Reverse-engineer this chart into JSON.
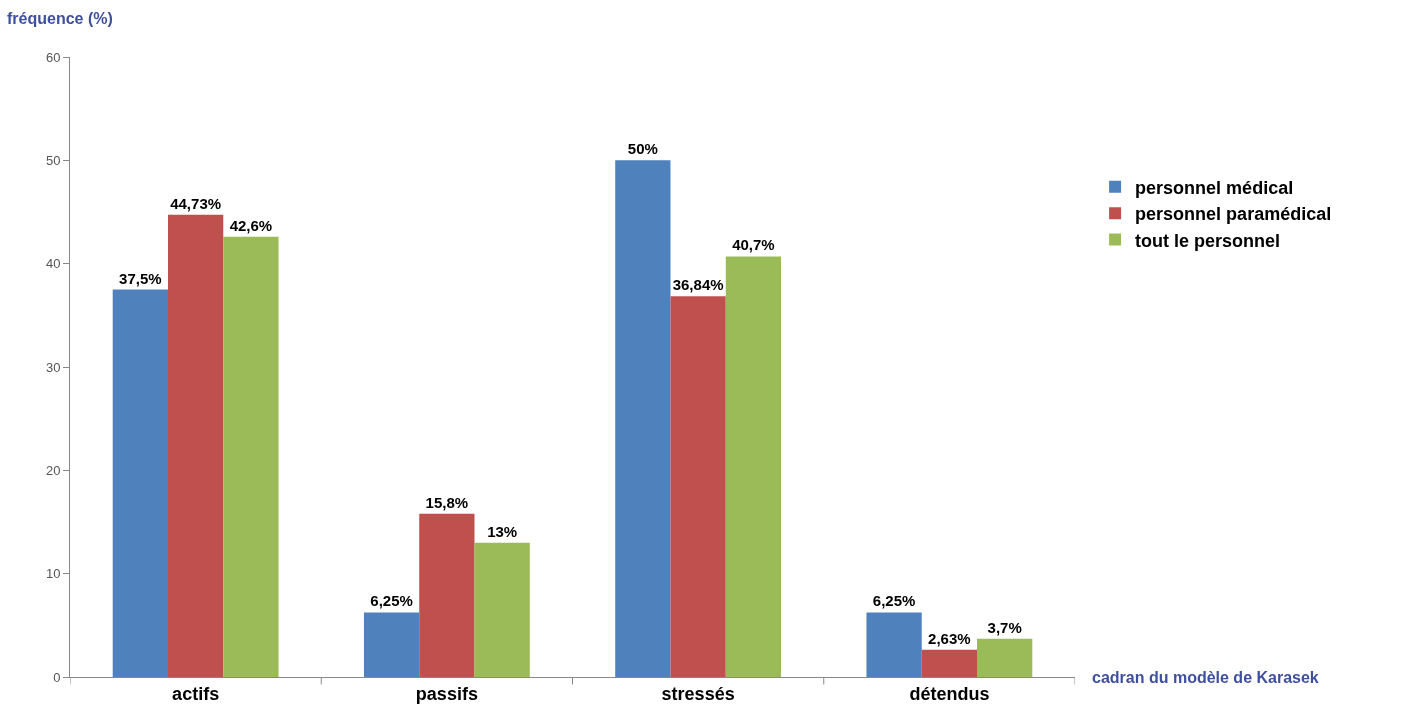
{
  "chart_data": {
    "type": "bar",
    "xlabel": "cadran du modèle de Karasek",
    "ylabel": "fréquence (%)",
    "categories": [
      "actifs",
      "passifs",
      "stressés",
      "détendus"
    ],
    "series": [
      {
        "name": "personnel médical",
        "color": "#4f81bd",
        "values": [
          37.5,
          6.25,
          50,
          6.25
        ],
        "value_labels": [
          "37,5%",
          "6,25%",
          "50%",
          "6,25%"
        ]
      },
      {
        "name": "personnel paramédical",
        "color": "#c0504d",
        "values": [
          44.73,
          15.8,
          36.84,
          2.63
        ],
        "value_labels": [
          "44,73%",
          "15,8%",
          "36,84%",
          "2,63%"
        ]
      },
      {
        "name": "tout le personnel",
        "color": "#9bbb59",
        "values": [
          42.6,
          13,
          40.7,
          3.7
        ],
        "value_labels": [
          "42,6%",
          "13%",
          "40,7%",
          "3,7%"
        ]
      }
    ],
    "ylim": [
      0,
      60
    ],
    "yticks": [
      0,
      10,
      20,
      30,
      40,
      50,
      60
    ],
    "grid": false,
    "legend": "right"
  }
}
